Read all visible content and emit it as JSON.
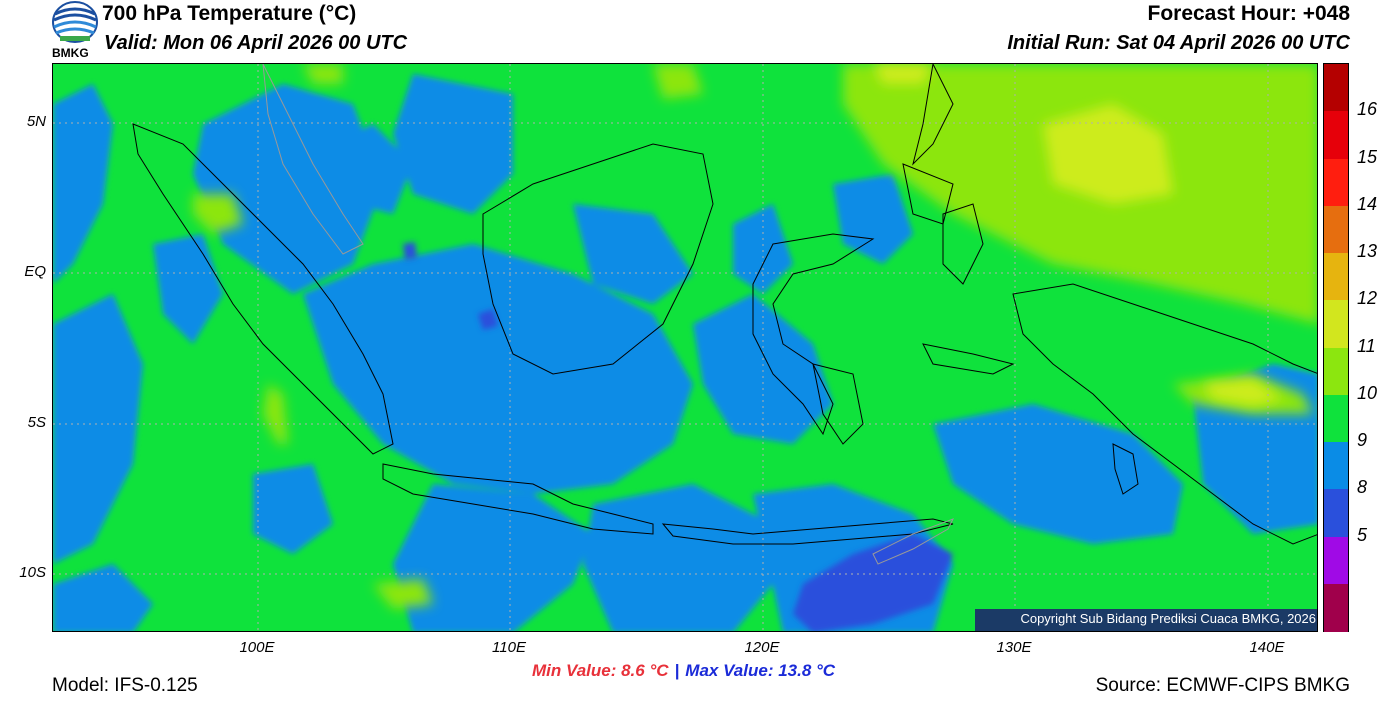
{
  "header": {
    "title": "700 hPa Temperature (°C)",
    "valid": "Valid: Mon 06 April 2026 00 UTC",
    "forecast_hour": "Forecast Hour: +048",
    "initial_run": "Initial Run: Sat 04 April 2026 00 UTC",
    "logo_text": "BMKG"
  },
  "map": {
    "lat_labels": [
      "5N",
      "EQ",
      "5S",
      "10S"
    ],
    "lon_labels": [
      "100E",
      "110E",
      "120E",
      "130E",
      "140E"
    ],
    "colors": {
      "blue": "#0a8ce6",
      "dark_blue": "#2a50dc",
      "green": "#0fe23c",
      "yellow_green": "#8ce60f",
      "lime": "#cdec1e"
    },
    "copyright": "Copyright Sub Bidang Prediksi Cuaca BMKG, 2026"
  },
  "colorbar": {
    "labels": [
      "16",
      "15",
      "14",
      "13",
      "12",
      "11",
      "10",
      "9",
      "8",
      "5"
    ],
    "colors": [
      "#b40000",
      "#e6000a",
      "#ff1e0f",
      "#e66e0f",
      "#e6b40f",
      "#d2e61e",
      "#8ce60f",
      "#0fe23c",
      "#0a8ce6",
      "#2a50dc",
      "#a00ae6",
      "#a0004b"
    ]
  },
  "footer": {
    "min_value": "Min Value: 8.6 °C",
    "separator": "|",
    "max_value": "Max Value: 13.8 °C",
    "model": "Model: IFS-0.125",
    "source": "Source: ECMWF-CIPS BMKG"
  }
}
